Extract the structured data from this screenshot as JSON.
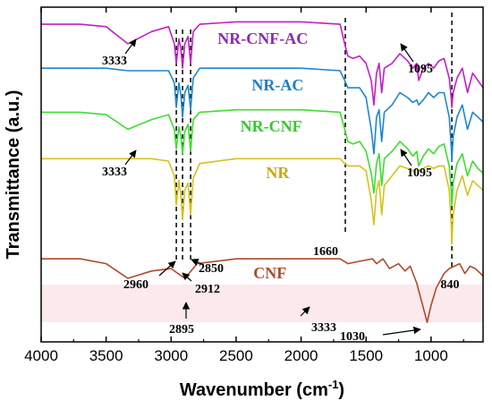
{
  "chart_data": {
    "type": "line",
    "xlabel": "Wavenumber (cm",
    "xlabel_sup": "-1",
    "xlabel_end": ")",
    "ylabel": "Transmittance (a.u.)",
    "xlim": [
      4000,
      600
    ],
    "x_reversed": true,
    "x_ticks": [
      "4000",
      "3500",
      "3000",
      "2500",
      "2000",
      "1500",
      "1000"
    ],
    "y_ticks": "none",
    "grid": false,
    "series": [
      {
        "name": "NR-CNF-AC",
        "color": "#c21fc4",
        "x": [
          4000,
          3700,
          3500,
          3333,
          3150,
          3020,
          2975,
          2960,
          2940,
          2925,
          2912,
          2895,
          2870,
          2850,
          2830,
          2780,
          2500,
          2000,
          1700,
          1665,
          1640,
          1600,
          1550,
          1500,
          1460,
          1440,
          1420,
          1400,
          1380,
          1360,
          1300,
          1240,
          1180,
          1140,
          1110,
          1095,
          1060,
          1020,
          980,
          940,
          900,
          860,
          845,
          840,
          830,
          800,
          760,
          720,
          680,
          640,
          600
        ],
        "y": [
          0.88,
          0.88,
          0.87,
          0.8,
          0.85,
          0.87,
          0.8,
          0.72,
          0.82,
          0.78,
          0.7,
          0.8,
          0.83,
          0.72,
          0.85,
          0.88,
          0.89,
          0.89,
          0.88,
          0.8,
          0.75,
          0.74,
          0.75,
          0.72,
          0.65,
          0.55,
          0.68,
          0.72,
          0.6,
          0.7,
          0.72,
          0.76,
          0.73,
          0.7,
          0.72,
          0.65,
          0.7,
          0.72,
          0.7,
          0.73,
          0.74,
          0.66,
          0.58,
          0.54,
          0.6,
          0.66,
          0.7,
          0.6,
          0.68,
          0.65,
          0.62
        ]
      },
      {
        "name": "NR-AC",
        "color": "#1f86d0",
        "x": [
          4000,
          3700,
          3500,
          3333,
          3150,
          3020,
          2975,
          2960,
          2940,
          2925,
          2912,
          2895,
          2870,
          2850,
          2830,
          2780,
          2500,
          2000,
          1700,
          1665,
          1640,
          1600,
          1550,
          1500,
          1460,
          1440,
          1420,
          1400,
          1380,
          1360,
          1300,
          1240,
          1180,
          1140,
          1110,
          1095,
          1060,
          1020,
          980,
          940,
          900,
          860,
          845,
          840,
          830,
          800,
          760,
          720,
          680,
          640,
          600
        ],
        "y": [
          0.7,
          0.7,
          0.7,
          0.69,
          0.69,
          0.69,
          0.64,
          0.54,
          0.64,
          0.59,
          0.5,
          0.6,
          0.63,
          0.53,
          0.66,
          0.7,
          0.7,
          0.7,
          0.69,
          0.65,
          0.62,
          0.62,
          0.62,
          0.58,
          0.45,
          0.35,
          0.5,
          0.53,
          0.4,
          0.52,
          0.55,
          0.6,
          0.58,
          0.56,
          0.57,
          0.55,
          0.57,
          0.6,
          0.58,
          0.6,
          0.6,
          0.5,
          0.38,
          0.32,
          0.42,
          0.5,
          0.55,
          0.45,
          0.52,
          0.5,
          0.48
        ]
      },
      {
        "name": "NR-CNF",
        "color": "#3dde2f",
        "x": [
          4000,
          3700,
          3500,
          3333,
          3150,
          3020,
          2975,
          2960,
          2940,
          2925,
          2912,
          2895,
          2870,
          2850,
          2830,
          2780,
          2500,
          2000,
          1700,
          1665,
          1640,
          1600,
          1550,
          1500,
          1460,
          1440,
          1420,
          1400,
          1380,
          1360,
          1300,
          1240,
          1180,
          1140,
          1110,
          1095,
          1060,
          1020,
          980,
          940,
          900,
          860,
          845,
          840,
          830,
          800,
          760,
          720,
          680,
          640,
          600
        ],
        "y": [
          0.52,
          0.52,
          0.51,
          0.45,
          0.49,
          0.51,
          0.45,
          0.37,
          0.46,
          0.42,
          0.35,
          0.44,
          0.47,
          0.36,
          0.49,
          0.52,
          0.53,
          0.53,
          0.52,
          0.45,
          0.4,
          0.39,
          0.4,
          0.36,
          0.27,
          0.19,
          0.31,
          0.35,
          0.22,
          0.33,
          0.36,
          0.4,
          0.37,
          0.34,
          0.36,
          0.3,
          0.34,
          0.37,
          0.35,
          0.38,
          0.39,
          0.3,
          0.2,
          0.14,
          0.23,
          0.31,
          0.35,
          0.26,
          0.32,
          0.29,
          0.27
        ]
      },
      {
        "name": "NR",
        "color": "#d4c21e",
        "x": [
          4000,
          3700,
          3500,
          3333,
          3150,
          3020,
          2975,
          2960,
          2940,
          2925,
          2912,
          2895,
          2870,
          2850,
          2830,
          2780,
          2500,
          2000,
          1700,
          1665,
          1640,
          1600,
          1550,
          1500,
          1460,
          1440,
          1420,
          1400,
          1380,
          1360,
          1300,
          1240,
          1180,
          1140,
          1110,
          1095,
          1060,
          1020,
          980,
          940,
          900,
          860,
          845,
          840,
          830,
          800,
          760,
          720,
          680,
          640,
          600
        ],
        "y": [
          0.33,
          0.33,
          0.33,
          0.33,
          0.33,
          0.32,
          0.26,
          0.14,
          0.24,
          0.18,
          0.08,
          0.2,
          0.23,
          0.1,
          0.25,
          0.31,
          0.33,
          0.33,
          0.33,
          0.31,
          0.3,
          0.3,
          0.3,
          0.28,
          0.16,
          0.06,
          0.2,
          0.24,
          0.1,
          0.22,
          0.26,
          0.3,
          0.29,
          0.28,
          0.29,
          0.28,
          0.29,
          0.3,
          0.29,
          0.3,
          0.3,
          0.2,
          0.06,
          -0.02,
          0.1,
          0.2,
          0.26,
          0.18,
          0.24,
          0.22,
          0.2
        ]
      },
      {
        "name": "CNF",
        "color": "#b04a2c",
        "x": [
          4000,
          3700,
          3500,
          3333,
          3150,
          3000,
          2895,
          2800,
          2500,
          2000,
          1700,
          1640,
          1550,
          1450,
          1420,
          1370,
          1320,
          1250,
          1200,
          1160,
          1110,
          1060,
          1030,
          1000,
          960,
          900,
          860,
          820,
          780,
          740,
          700,
          660,
          600
        ],
        "y": [
          -0.08,
          -0.08,
          -0.1,
          -0.16,
          -0.13,
          -0.12,
          -0.16,
          -0.1,
          -0.08,
          -0.08,
          -0.08,
          -0.1,
          -0.09,
          -0.08,
          -0.1,
          -0.08,
          -0.12,
          -0.1,
          -0.13,
          -0.11,
          -0.18,
          -0.28,
          -0.34,
          -0.27,
          -0.2,
          -0.14,
          -0.12,
          -0.11,
          -0.1,
          -0.14,
          -0.11,
          -0.12,
          -0.15
        ]
      }
    ],
    "series_labels": [
      {
        "text": "NR-CNF-AC",
        "x": 2295,
        "y": 0.8,
        "color": "#8e2bb0"
      },
      {
        "text": "NR-AC",
        "x": 2180,
        "y": 0.61,
        "color": "#1f7fc6"
      },
      {
        "text": "NR-CNF",
        "x": 2230,
        "y": 0.44,
        "color": "#34c92c"
      },
      {
        "text": "NR",
        "x": 2180,
        "y": 0.25,
        "color": "#c9a715"
      },
      {
        "text": "CNF",
        "x": 2240,
        "y": -0.16,
        "color": "#b04a2c"
      }
    ],
    "dashed_lines": [
      2960,
      2912,
      2850,
      1660,
      840
    ],
    "annotations": [
      {
        "text": "3333",
        "x": 3333,
        "y": 0.78
      },
      {
        "text": "1095",
        "x": 1095,
        "y": 0.63
      },
      {
        "text": "3333",
        "x": 3333,
        "y": 0.43
      },
      {
        "text": "1095",
        "x": 1095,
        "y": 0.28
      },
      {
        "text": "2960",
        "x": 2960,
        "y": 0.06
      },
      {
        "text": "2912",
        "x": 2912,
        "y": 0.04
      },
      {
        "text": "2850",
        "x": 2850,
        "y": 0.05
      },
      {
        "text": "1660",
        "x": 1660,
        "y": 0.31
      },
      {
        "text": "840",
        "x": 840,
        "y": -0.03
      },
      {
        "text": "3333",
        "x": 3333,
        "y": -0.18
      },
      {
        "text": "2895",
        "x": 2895,
        "y": -0.18
      },
      {
        "text": "1030",
        "x": 1030,
        "y": -0.34
      }
    ]
  }
}
